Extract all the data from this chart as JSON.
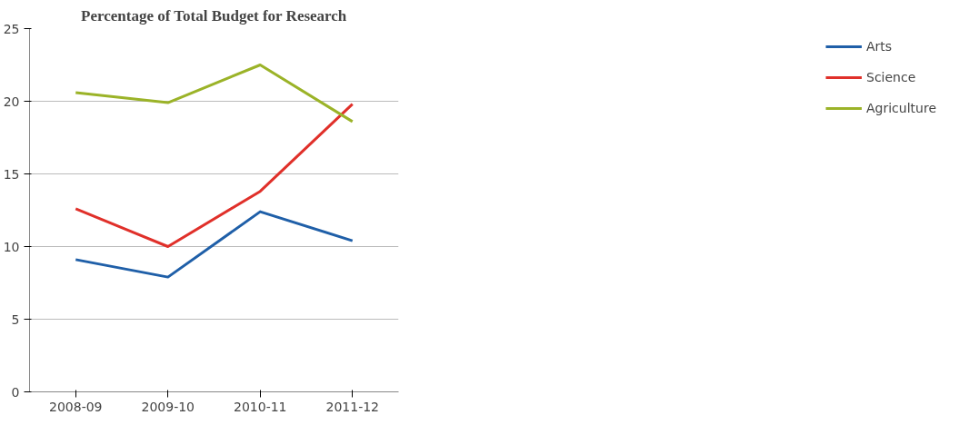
{
  "chart_data": {
    "type": "line",
    "title": "Percentage of Total Budget for Research",
    "categories": [
      "2008-09",
      "2009-10",
      "2010-11",
      "2011-12"
    ],
    "series": [
      {
        "name": "Arts",
        "color": "#1f5fa8",
        "values": [
          9.1,
          7.9,
          12.4,
          10.4
        ]
      },
      {
        "name": "Science",
        "color": "#e0302a",
        "values": [
          12.6,
          10.0,
          13.8,
          19.8
        ]
      },
      {
        "name": "Agriculture",
        "color": "#9bb328",
        "values": [
          20.6,
          19.9,
          22.5,
          18.6
        ]
      }
    ],
    "ylim": [
      0,
      25
    ],
    "yticks": [
      0,
      5,
      10,
      15,
      20,
      25
    ],
    "grid": "y",
    "legend": "right",
    "marker": "none",
    "line_style": "solid"
  }
}
